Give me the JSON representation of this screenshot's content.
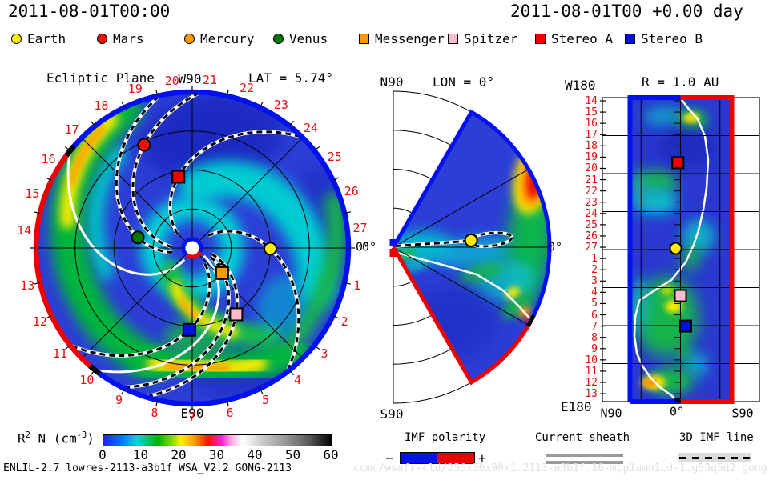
{
  "header": {
    "title_left": "2011-08-01T00:00",
    "title_right": "2011-08-01T00 +0.00 day"
  },
  "legend": {
    "items": [
      {
        "label": "Earth",
        "shape": "circle",
        "color": "#ffee00"
      },
      {
        "label": "Mars",
        "shape": "circle",
        "color": "#ee1100"
      },
      {
        "label": "Mercury",
        "shape": "circle",
        "color": "#ff9900"
      },
      {
        "label": "Venus",
        "shape": "circle",
        "color": "#007700"
      },
      {
        "label": "Messenger",
        "shape": "square",
        "color": "#ff9900"
      },
      {
        "label": "Spitzer",
        "shape": "square",
        "color": "#ffbbcc"
      },
      {
        "label": "Stereo_A",
        "shape": "square",
        "color": "#ee0000"
      },
      {
        "label": "Stereo_B",
        "shape": "square",
        "color": "#0011dd"
      }
    ]
  },
  "ecliptic_panel": {
    "title": "Ecliptic Plane",
    "top_label": "W90",
    "lat_label": "LAT = 5.74°",
    "bottom_label": "E90",
    "zero_label": "0°",
    "rim_numbers": [
      "1",
      "2",
      "3",
      "4",
      "5",
      "6",
      "7",
      "8",
      "9",
      "10",
      "11",
      "12",
      "13",
      "14",
      "15",
      "16",
      "17",
      "18",
      "19",
      "20",
      "21",
      "22",
      "23",
      "24",
      "25",
      "26",
      "27"
    ]
  },
  "meridional_panel": {
    "north_label": "N90",
    "lon_label": "LON = 0°",
    "south_label": "S90",
    "zero_left": "0°",
    "zero_right": "0°"
  },
  "sphere_panel": {
    "title": "R = 1.0 AU",
    "corner_top": "W180",
    "corner_bottom": "E180",
    "x_labels": [
      "N90",
      "0°",
      "S90"
    ],
    "day_labels": [
      "14",
      "15",
      "16",
      "17",
      "18",
      "19",
      "20",
      "21",
      "22",
      "23",
      "24",
      "25",
      "26",
      "27",
      "1",
      "2",
      "3",
      "4",
      "5",
      "6",
      "7",
      "8",
      "9",
      "10",
      "11",
      "12",
      "13"
    ]
  },
  "colorbar": {
    "label_prefix": "R",
    "label_sup": "2",
    "label_mid": " N (cm",
    "label_sup2": "-3",
    "label_suffix": ")",
    "ticks": [
      "0",
      "10",
      "20",
      "30",
      "40",
      "50",
      "60"
    ]
  },
  "bottom_legend": {
    "imf_label": "IMF polarity",
    "imf_minus": "−",
    "imf_plus": "+",
    "imf_negative_color": "#0011ee",
    "imf_positive_color": "#ee0000",
    "sheath_label": "Current sheath",
    "imf_line_label": "3D IMF line"
  },
  "footer": {
    "model_info": "ENLIL-2.7 lowres-2113-a3b1f WSA_V2.2 GONG-2113",
    "watermark": "ccmc/wsafr-cld/256x30x90x1.2113-a3b1f.16-mcp1umn1cd-1.g53q5d2.gong-2011-08-01T00  2011-08-02"
  },
  "chart_data": {
    "type": "heatmap",
    "title": "ENLIL heliospheric solar-wind scaled density R²N at 2011-08-01T00:00 (+0.00 day)",
    "quantity": "R² N (cm⁻³)",
    "colorbar_range": [
      0,
      60
    ],
    "colorbar_ticks": [
      0,
      10,
      20,
      30,
      40,
      50,
      60
    ],
    "legend_position": "bottom",
    "panels": [
      {
        "id": "ecliptic-plane",
        "title": "Ecliptic Plane",
        "lat_deg": 5.74,
        "r_max_au": 2.0,
        "rim_marks": "day numbers 1-27 counterclockwise->clockwise around boundary, 0° at right",
        "rim_positive_polarity_arc_deg": [
          141,
          231
        ],
        "rim_negative_polarity": "remainder (blue)"
      },
      {
        "id": "meridional-cut",
        "lon_deg": 0,
        "lat_extent_deg": [
          -60,
          60
        ],
        "r_max_au": 2.0,
        "rim_positive_polarity_lat_deg": [
          -60,
          -28
        ],
        "rim_negative_polarity_lat_deg": [
          -28,
          60
        ]
      },
      {
        "id": "constant-radius-map",
        "r_au": 1.0,
        "lat_axis": [
          "N90",
          "0°",
          "S90"
        ],
        "day_axis_top_to_bottom": [
          "14",
          "15",
          "16",
          "17",
          "18",
          "19",
          "20",
          "21",
          "22",
          "23",
          "24",
          "25",
          "26",
          "27",
          "1",
          "2",
          "3",
          "4",
          "5",
          "6",
          "7",
          "8",
          "9",
          "10",
          "11",
          "12",
          "13"
        ],
        "left_border_polarity": "negative (blue)",
        "right_border_polarity": "positive (red)"
      }
    ],
    "objects": [
      {
        "name": "Earth",
        "marker": "circle",
        "color": "#ffee00",
        "imf_line": true,
        "ecliptic": {
          "r_au": 1.0,
          "lon_deg": -0.5
        },
        "meridional": {
          "r_au": 1.0,
          "lat_deg": 5
        },
        "sphere": {
          "day": 27.1,
          "lat_deg": 5.5
        }
      },
      {
        "name": "Mars",
        "marker": "circle",
        "color": "#ee1100",
        "imf_line": true,
        "ecliptic": {
          "r_au": 1.46,
          "lon_deg": 115
        },
        "meridional": null,
        "sphere": null
      },
      {
        "name": "Mercury",
        "marker": "circle",
        "color": "#ff9900",
        "imf_line": true,
        "ecliptic": {
          "r_au": 0.47,
          "lon_deg": -37
        },
        "meridional": null,
        "sphere": null
      },
      {
        "name": "Venus",
        "marker": "circle",
        "color": "#007700",
        "imf_line": true,
        "ecliptic": {
          "r_au": 0.71,
          "lon_deg": 169
        },
        "meridional": null,
        "sphere": null
      },
      {
        "name": "Messenger",
        "marker": "square",
        "color": "#ff9900",
        "imf_line": false,
        "ecliptic": {
          "r_au": 0.5,
          "lon_deg": -40
        },
        "meridional": null,
        "sphere": null
      },
      {
        "name": "Spitzer",
        "marker": "square",
        "color": "#ffbbcc",
        "imf_line": true,
        "ecliptic": {
          "r_au": 1.02,
          "lon_deg": -56.5
        },
        "meridional": null,
        "sphere": {
          "day": 4.3,
          "lat_deg": 0
        }
      },
      {
        "name": "Stereo_A",
        "marker": "square",
        "color": "#ee0000",
        "imf_line": true,
        "ecliptic": {
          "r_au": 0.93,
          "lon_deg": 101
        },
        "meridional": null,
        "sphere": {
          "day": 19.5,
          "lat_deg": 3
        }
      },
      {
        "name": "Stereo_B",
        "marker": "square",
        "color": "#0011dd",
        "imf_line": true,
        "ecliptic": {
          "r_au": 1.05,
          "lon_deg": -92
        },
        "meridional": null,
        "sphere": {
          "day": 7.0,
          "lat_deg": -6
        }
      }
    ],
    "imf_spiral_winding_deg_per_au": 52,
    "current_sheet": {
      "style": "white solid line",
      "ecliptic_rim_crossings_deg": [
        141,
        231
      ],
      "meridional_rim_crossing_lat_deg": -28,
      "sphere_map": "snakes from top-center to bottom-center, bulging to S near days 15-26 and to N near days 1-9"
    },
    "density_features_qualitative": [
      "ecliptic: two bright green/yellow spiral arms (CIRs), one from upper-left rim, one along bottom, orange cores ~25-30 cm-3",
      "ecliptic: cyan ring around Sun and cyan sweep toward right rim, dark-blue low-density lobes at top and right",
      "meridional: red/orange high-density blob near outer boundary at ~+30° lat (~45-50 cm-3), green column along outer boundary below equator",
      "sphere map: yellow patch near day 15, green band days 20-24, large green region days 3-9 with yellow core, orange spot near day 12"
    ]
  }
}
